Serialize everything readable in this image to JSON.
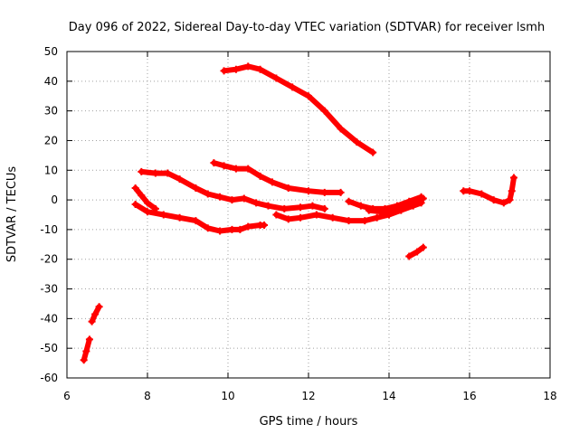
{
  "chart_data": {
    "type": "line",
    "title": "Day 096 of 2022, Sidereal Day-to-day VTEC variation (SDTVAR) for receiver lsmh",
    "xlabel": "GPS time / hours",
    "ylabel": "SDTVAR / TECUs",
    "xlim": [
      6,
      18
    ],
    "ylim": [
      -60,
      50
    ],
    "xticks": [
      6,
      8,
      10,
      12,
      14,
      16,
      18
    ],
    "yticks": [
      -60,
      -50,
      -40,
      -30,
      -20,
      -10,
      0,
      10,
      20,
      30,
      40,
      50
    ],
    "grid": true,
    "series_color": "#ff0000",
    "series": [
      {
        "name": "s1",
        "x": [
          6.42,
          6.48,
          6.56
        ],
        "y": [
          -54,
          -51,
          -47
        ]
      },
      {
        "name": "s2",
        "x": [
          6.62,
          6.7,
          6.8
        ],
        "y": [
          -41,
          -38.5,
          -36
        ]
      },
      {
        "name": "s3",
        "x": [
          9.9,
          10.2,
          10.5,
          10.8,
          11.2,
          11.6,
          12.0,
          12.4,
          12.8,
          13.2,
          13.6
        ],
        "y": [
          43.5,
          44,
          45,
          44,
          41,
          38,
          35,
          30,
          24,
          19.5,
          16
        ]
      },
      {
        "name": "s4",
        "x": [
          9.65,
          9.9,
          10.2,
          10.5,
          10.8,
          11.1,
          11.5,
          12.0,
          12.4,
          12.8
        ],
        "y": [
          12.5,
          11.5,
          10.5,
          10.5,
          8,
          6,
          4,
          3,
          2.5,
          2.5
        ]
      },
      {
        "name": "s5",
        "x": [
          7.85,
          8.2,
          8.5,
          8.8,
          9.2,
          9.5,
          9.8,
          10.1,
          10.4,
          10.7,
          11.0,
          11.4,
          11.8,
          12.1,
          12.4
        ],
        "y": [
          9.5,
          9,
          9,
          7,
          4,
          2,
          1,
          0,
          0.5,
          -1,
          -2,
          -3,
          -2.5,
          -2,
          -3
        ]
      },
      {
        "name": "s6",
        "x": [
          7.7,
          7.85,
          8.0,
          8.2
        ],
        "y": [
          4,
          1.5,
          -1,
          -3
        ]
      },
      {
        "name": "s7",
        "x": [
          7.7,
          8.0,
          8.4,
          8.8,
          9.2,
          9.5,
          9.8,
          10.1,
          10.3,
          10.5,
          10.8,
          10.9
        ],
        "y": [
          -1.5,
          -4,
          -5,
          -6,
          -7,
          -9.5,
          -10.5,
          -10,
          -10,
          -9,
          -8.5,
          -8.5
        ]
      },
      {
        "name": "s8",
        "x": [
          11.2,
          11.5,
          11.8,
          12.2,
          12.6,
          13.0,
          13.4,
          13.7,
          14.0,
          14.3,
          14.6,
          14.8
        ],
        "y": [
          -5,
          -6.5,
          -6,
          -5,
          -6,
          -7,
          -7,
          -6,
          -5,
          -3.5,
          -2,
          -1
        ]
      },
      {
        "name": "s9",
        "x": [
          13.0,
          13.3,
          13.6,
          13.9,
          14.2,
          14.5,
          14.8
        ],
        "y": [
          -0.5,
          -2,
          -3,
          -3,
          -2,
          -0.5,
          1
        ]
      },
      {
        "name": "s10",
        "x": [
          13.5,
          13.8,
          14.1,
          14.4,
          14.7,
          14.85
        ],
        "y": [
          -3.5,
          -4,
          -3.5,
          -2.5,
          -1,
          0.5
        ]
      },
      {
        "name": "s11",
        "x": [
          14.5,
          14.7,
          14.85
        ],
        "y": [
          -19,
          -17.5,
          -16
        ]
      },
      {
        "name": "s12",
        "x": [
          15.85,
          16.0,
          16.3,
          16.6,
          16.85,
          17.0,
          17.05,
          17.1
        ],
        "y": [
          3,
          3,
          2,
          0,
          -1,
          0,
          3,
          7.5
        ]
      }
    ]
  }
}
